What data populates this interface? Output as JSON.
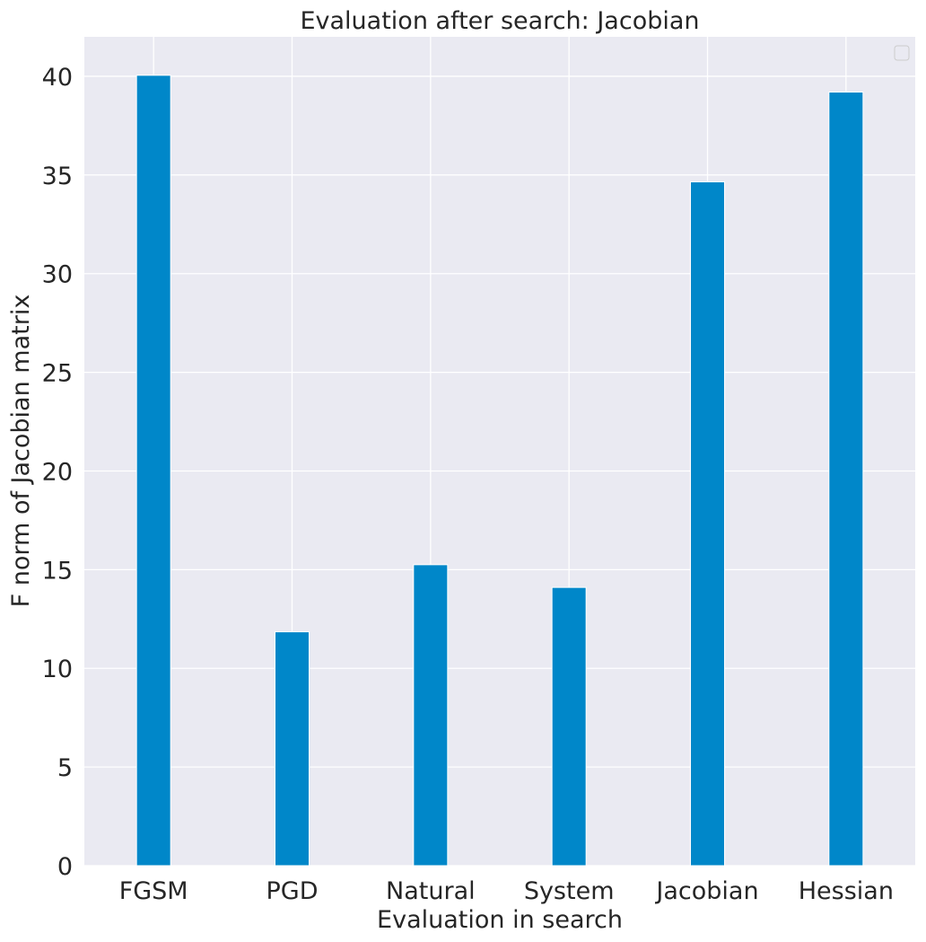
{
  "chart_data": {
    "type": "bar",
    "title": "Evaluation after search: Jacobian",
    "xlabel": "Evaluation in search",
    "ylabel": "F norm of Jacobian matrix",
    "categories": [
      "FGSM",
      "PGD",
      "Natural",
      "System",
      "Jacobian",
      "Hessian"
    ],
    "values": [
      40.05,
      11.85,
      15.25,
      14.1,
      34.65,
      39.2
    ],
    "ylim": [
      0,
      42
    ],
    "yticks": [
      0,
      5,
      10,
      15,
      20,
      25,
      30,
      35,
      40
    ],
    "grid": true,
    "legend": {
      "position": "top-right",
      "entries": []
    },
    "colors": {
      "bar": "#0087c9",
      "plot_background": "#eaeaf2",
      "grid": "#ffffff",
      "text": "#262626"
    }
  }
}
